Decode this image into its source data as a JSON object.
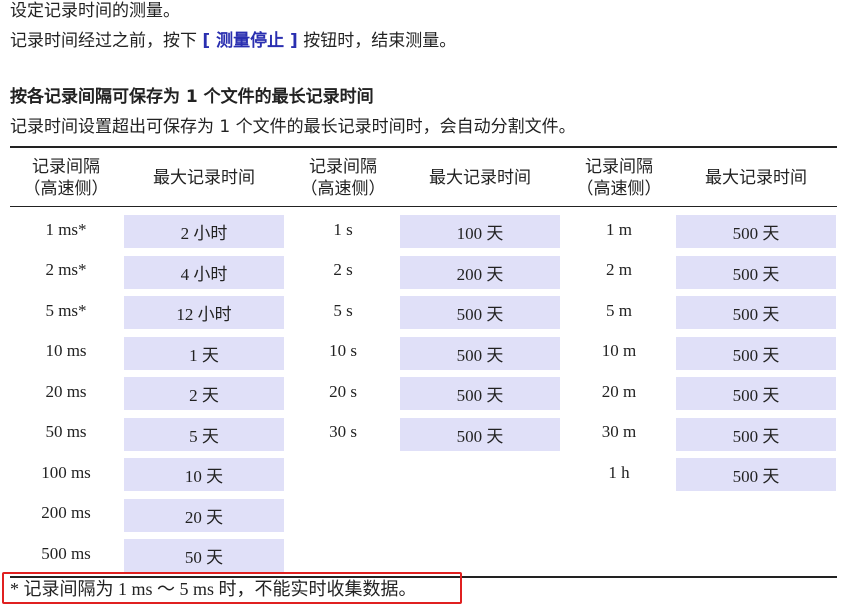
{
  "intro": {
    "line1": "设定记录时间的测量。",
    "line2_pre": "记录时间经过之前，按下 ",
    "line2_button": "[ 测量停止 ]",
    "line2_post": " 按钮时，结束测量。"
  },
  "section": {
    "heading": "按各记录间隔可保存为 1 个文件的最长记录时间",
    "desc": "记录时间设置超出可保存为 1 个文件的最长记录时间时，会自动分割文件。"
  },
  "table": {
    "header_interval": [
      "记录间隔",
      "（高速侧）"
    ],
    "header_max": "最大记录时间",
    "columns": [
      {
        "rows": [
          [
            "1 ms*",
            "2 小时"
          ],
          [
            "2 ms*",
            "4 小时"
          ],
          [
            "5 ms*",
            "12 小时"
          ],
          [
            "10 ms",
            "1 天"
          ],
          [
            "20 ms",
            "2 天"
          ],
          [
            "50 ms",
            "5 天"
          ],
          [
            "100 ms",
            "10 天"
          ],
          [
            "200 ms",
            "20 天"
          ],
          [
            "500 ms",
            "50 天"
          ]
        ]
      },
      {
        "rows": [
          [
            "1 s",
            "100 天"
          ],
          [
            "2 s",
            "200 天"
          ],
          [
            "5 s",
            "500 天"
          ],
          [
            "10 s",
            "500 天"
          ],
          [
            "20 s",
            "500 天"
          ],
          [
            "30 s",
            "500 天"
          ]
        ]
      },
      {
        "rows": [
          [
            "1 m",
            "500 天"
          ],
          [
            "2 m",
            "500 天"
          ],
          [
            "5 m",
            "500 天"
          ],
          [
            "10 m",
            "500 天"
          ],
          [
            "20 m",
            "500 天"
          ],
          [
            "30 m",
            "500 天"
          ],
          [
            "1 h",
            "500 天"
          ]
        ]
      }
    ]
  },
  "footnote": "* 记录间隔为 1 ms ～ 5 ms 时，不能实时收集数据。",
  "colors": {
    "cell_bg": "#e0e0f8",
    "highlight_box": "#e02020",
    "link": "#2a2fb0"
  }
}
